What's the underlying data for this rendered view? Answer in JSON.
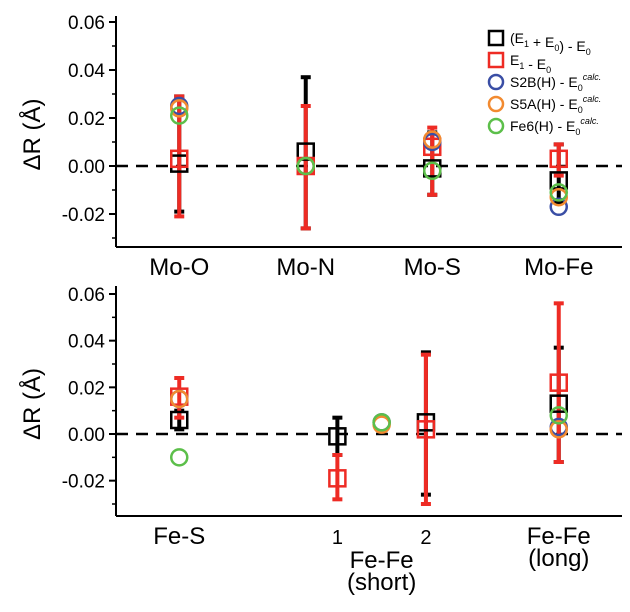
{
  "colors": {
    "black": "#000000",
    "red": "#ee2b24",
    "blue": "#3a4ea5",
    "orange": "#f28a30",
    "green": "#5cbf4a"
  },
  "legend": [
    {
      "series": "E1E0_sum",
      "marker": "square",
      "color": "#000000",
      "label": "(E1 + E0) - E0",
      "html": "(E<sub>1</sub> + E<sub>0</sub>) - E<sub>0</sub>"
    },
    {
      "series": "E1_minus_E0",
      "marker": "square",
      "color": "#ee2b24",
      "label": "E1 - E0",
      "html": "E<sub>1</sub> - E<sub>0</sub>"
    },
    {
      "series": "S2B",
      "marker": "circle",
      "color": "#3a4ea5",
      "label": "S2B(H) - E0calc.",
      "html": "S2B(H) - E<sub>0</sub><sup>calc.</sup>"
    },
    {
      "series": "S5A",
      "marker": "circle",
      "color": "#f28a30",
      "label": "S5A(H) - E0calc.",
      "html": "S5A(H) - E<sub>0</sub><sup>calc.</sup>"
    },
    {
      "series": "Fe6",
      "marker": "circle",
      "color": "#5cbf4a",
      "label": "Fe6(H) - E0calc.",
      "html": "Fe6(H) - E<sub>0</sub><sup>calc.</sup>"
    }
  ],
  "chart_data": [
    {
      "type": "scatter",
      "panel": "top",
      "ylabel": "ΔR (Å)",
      "ylim": [
        -0.03,
        0.06
      ],
      "yticks": [
        -0.02,
        0.0,
        0.02,
        0.04,
        0.06
      ],
      "ytick_labels": [
        "-0.02",
        "0.00",
        "0.02",
        "0.04",
        "0.06"
      ],
      "reference_line": {
        "y": 0.0,
        "style": "dashed"
      },
      "categories": [
        {
          "label": "Mo-O",
          "x": 1
        },
        {
          "label": "Mo-N",
          "x": 2
        },
        {
          "label": "Mo-S",
          "x": 3
        },
        {
          "label": "Mo-Fe",
          "x": 4
        }
      ],
      "xlim": [
        0.5,
        4.5
      ],
      "series": [
        {
          "key": "E1E0_sum",
          "marker": "square",
          "color": "#000000",
          "points": [
            {
              "x": 1,
              "y": 0.001,
              "err_low": -0.019,
              "err_high": 0.029
            },
            {
              "x": 2,
              "y": 0.006,
              "err_low": -0.026,
              "err_high": 0.037
            },
            {
              "x": 3,
              "y": -0.001,
              "err_low": -0.012,
              "err_high": 0.014
            },
            {
              "x": 4,
              "y": -0.006,
              "err_low": -0.015,
              "err_high": 0.009
            }
          ]
        },
        {
          "key": "E1_minus_E0",
          "marker": "square",
          "color": "#ee2b24",
          "points": [
            {
              "x": 1,
              "y": 0.003,
              "err_low": -0.021,
              "err_high": 0.029
            },
            {
              "x": 2,
              "y": 0.0,
              "err_low": -0.026,
              "err_high": 0.025
            },
            {
              "x": 3,
              "y": 0.008,
              "err_low": -0.012,
              "err_high": 0.016
            },
            {
              "x": 4,
              "y": 0.003,
              "err_low": -0.004,
              "err_high": 0.009
            }
          ]
        },
        {
          "key": "S2B",
          "marker": "circle",
          "color": "#3a4ea5",
          "points": [
            {
              "x": 1,
              "y": 0.025
            },
            {
              "x": 2,
              "y": 0.0
            },
            {
              "x": 3,
              "y": 0.01
            },
            {
              "x": 4,
              "y": -0.017
            }
          ]
        },
        {
          "key": "S5A",
          "marker": "circle",
          "color": "#f28a30",
          "points": [
            {
              "x": 1,
              "y": 0.024
            },
            {
              "x": 2,
              "y": 0.0
            },
            {
              "x": 3,
              "y": 0.011
            },
            {
              "x": 4,
              "y": -0.013
            }
          ]
        },
        {
          "key": "Fe6",
          "marker": "circle",
          "color": "#5cbf4a",
          "points": [
            {
              "x": 1,
              "y": 0.021
            },
            {
              "x": 2,
              "y": 0.0
            },
            {
              "x": 3,
              "y": -0.002
            },
            {
              "x": 4,
              "y": -0.011
            }
          ]
        }
      ]
    },
    {
      "type": "scatter",
      "panel": "bottom",
      "ylabel": "ΔR (Å)",
      "ylim": [
        -0.033,
        0.06
      ],
      "yticks": [
        -0.02,
        0.0,
        0.02,
        0.04,
        0.06
      ],
      "ytick_labels": [
        "-0.02",
        "0.00",
        "0.02",
        "0.04",
        "0.06"
      ],
      "reference_line": {
        "y": 0.0,
        "style": "dashed"
      },
      "categories": [
        {
          "label": "Fe-S",
          "x": 1.0
        },
        {
          "label": "1",
          "x": 2.25
        },
        {
          "label": "2",
          "x": 2.95
        },
        {
          "label": "Fe-Fe (long)",
          "lines": [
            "Fe-Fe",
            "(long)"
          ],
          "x": 4.0
        }
      ],
      "group_label": {
        "lines": [
          "Fe-Fe",
          "(short)"
        ],
        "x": 2.6
      },
      "xlim": [
        0.5,
        4.5
      ],
      "series": [
        {
          "key": "E1E0_sum",
          "marker": "square",
          "color": "#000000",
          "points": [
            {
              "x": 1.0,
              "y": 0.006,
              "err_low": 0.002,
              "err_high": 0.01
            },
            {
              "x": 2.25,
              "y": -0.001,
              "err_low": -0.009,
              "err_high": 0.007
            },
            {
              "x": 2.95,
              "y": 0.005,
              "err_low": -0.026,
              "err_high": 0.035
            },
            {
              "x": 4.0,
              "y": 0.013,
              "err_low": -0.012,
              "err_high": 0.037
            }
          ]
        },
        {
          "key": "E1_minus_E0",
          "marker": "square",
          "color": "#ee2b24",
          "points": [
            {
              "x": 1.0,
              "y": 0.016,
              "err_low": 0.007,
              "err_high": 0.024
            },
            {
              "x": 2.25,
              "y": -0.019,
              "err_low": -0.028,
              "err_high": -0.009
            },
            {
              "x": 2.95,
              "y": 0.002,
              "err_low": -0.03,
              "err_high": 0.034
            },
            {
              "x": 4.0,
              "y": 0.022,
              "err_low": -0.012,
              "err_high": 0.056
            }
          ]
        },
        {
          "key": "S2B",
          "marker": "circle",
          "color": "#3a4ea5",
          "points": [
            {
              "x": 1.0,
              "y": 0.015
            },
            {
              "x": 2.6,
              "y": 0.005
            },
            {
              "x": 4.0,
              "y": 0.003
            }
          ]
        },
        {
          "key": "S5A",
          "marker": "circle",
          "color": "#f28a30",
          "points": [
            {
              "x": 1.0,
              "y": 0.015
            },
            {
              "x": 2.6,
              "y": 0.004
            },
            {
              "x": 4.0,
              "y": 0.002
            }
          ]
        },
        {
          "key": "Fe6",
          "marker": "circle",
          "color": "#5cbf4a",
          "points": [
            {
              "x": 1.0,
              "y": -0.01
            },
            {
              "x": 2.6,
              "y": 0.005
            },
            {
              "x": 4.0,
              "y": 0.008
            }
          ]
        }
      ]
    }
  ]
}
